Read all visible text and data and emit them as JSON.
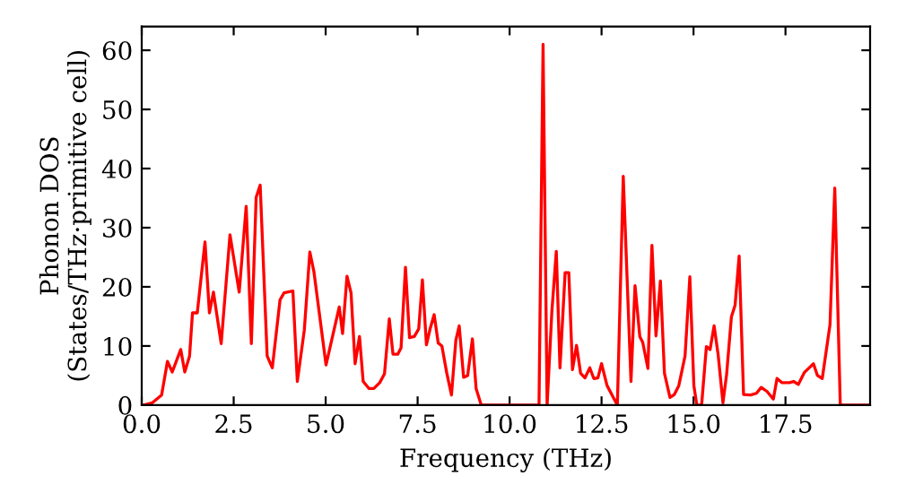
{
  "chart_data": {
    "type": "line",
    "xlabel": "Frequency (THz)",
    "ylabel": "Phonon DOS\n(States/THz·primitive cell)",
    "x": [
      0.05,
      0.29,
      0.54,
      0.7,
      0.83,
      1.06,
      1.17,
      1.3,
      1.38,
      1.51,
      1.72,
      1.84,
      1.95,
      2.16,
      2.4,
      2.65,
      2.84,
      2.98,
      3.11,
      3.22,
      3.41,
      3.55,
      3.76,
      3.87,
      4.11,
      4.23,
      4.42,
      4.57,
      4.68,
      5.01,
      5.37,
      5.46,
      5.58,
      5.69,
      5.8,
      5.92,
      6.02,
      6.18,
      6.31,
      6.47,
      6.6,
      6.73,
      6.83,
      6.96,
      7.05,
      7.17,
      7.28,
      7.41,
      7.53,
      7.63,
      7.74,
      7.84,
      7.95,
      8.06,
      8.16,
      8.29,
      8.42,
      8.54,
      8.63,
      8.75,
      8.86,
      8.99,
      9.09,
      9.23,
      10.8,
      10.91,
      11.02,
      11.15,
      11.27,
      11.37,
      11.51,
      11.61,
      11.71,
      11.82,
      11.93,
      12.05,
      12.18,
      12.29,
      12.4,
      12.5,
      12.65,
      12.93,
      13.09,
      13.3,
      13.41,
      13.54,
      13.62,
      13.76,
      13.87,
      13.98,
      14.1,
      14.21,
      14.36,
      14.48,
      14.6,
      14.77,
      14.9,
      15.01,
      15.09,
      15.22,
      15.35,
      15.45,
      15.56,
      15.67,
      15.8,
      15.9,
      16.03,
      16.13,
      16.24,
      16.36,
      16.55,
      16.71,
      16.84,
      17.0,
      17.17,
      17.27,
      17.4,
      17.61,
      17.72,
      17.85,
      18.01,
      18.26,
      18.37,
      18.5,
      18.71,
      18.84,
      18.99,
      19.8
    ],
    "series": [
      {
        "color": "#ff0000",
        "values": [
          0,
          0.4,
          1.7,
          7.4,
          5.6,
          9.4,
          5.6,
          8.3,
          15.6,
          15.6,
          27.6,
          15.6,
          19.1,
          10.4,
          28.8,
          19.1,
          33.6,
          10.4,
          35.1,
          37.2,
          8.3,
          6.3,
          17.8,
          19,
          19.3,
          4,
          12.7,
          25.9,
          22.6,
          6.8,
          16.6,
          12.1,
          21.8,
          19,
          7,
          11.6,
          4,
          2.8,
          2.8,
          3.8,
          5.3,
          14.6,
          8.6,
          8.6,
          9.7,
          23.3,
          11.4,
          11.6,
          12.9,
          21.2,
          10.2,
          12.9,
          15.3,
          10.5,
          10,
          5.5,
          1.7,
          11,
          13.4,
          4.7,
          5,
          11.2,
          2.8,
          0,
          0,
          61,
          0,
          15.9,
          26,
          6.3,
          22.4,
          22.4,
          6,
          10.1,
          5.4,
          4.6,
          6.3,
          4.5,
          4.6,
          7,
          3.3,
          0,
          38.7,
          4,
          20.2,
          11.6,
          10.6,
          6.2,
          27,
          11.7,
          21,
          5.4,
          1.3,
          1.8,
          3.3,
          8.3,
          21.7,
          3.3,
          0,
          0,
          9.9,
          9.4,
          13.4,
          8.5,
          0.4,
          5.2,
          14.9,
          16.9,
          25.2,
          1.8,
          1.7,
          2,
          3,
          2.3,
          1,
          4.5,
          3.8,
          3.8,
          4,
          3.5,
          5.5,
          7,
          5,
          4.5,
          13.6,
          36.7,
          0,
          0
        ]
      }
    ],
    "xlim": [
      0,
      19.8
    ],
    "ylim": [
      0,
      64
    ],
    "xticks": [
      {
        "value": 0,
        "label": "0.0"
      },
      {
        "value": 2.5,
        "label": "2.5"
      },
      {
        "value": 5,
        "label": "5.0"
      },
      {
        "value": 7.5,
        "label": "7.5"
      },
      {
        "value": 10,
        "label": "10.0"
      },
      {
        "value": 12.5,
        "label": "12.5"
      },
      {
        "value": 15,
        "label": "15.0"
      },
      {
        "value": 17.5,
        "label": "17.5"
      }
    ],
    "yticks": [
      0,
      10,
      20,
      30,
      40,
      50,
      60
    ],
    "grid": false,
    "marker": "none",
    "line_style": "solid"
  }
}
